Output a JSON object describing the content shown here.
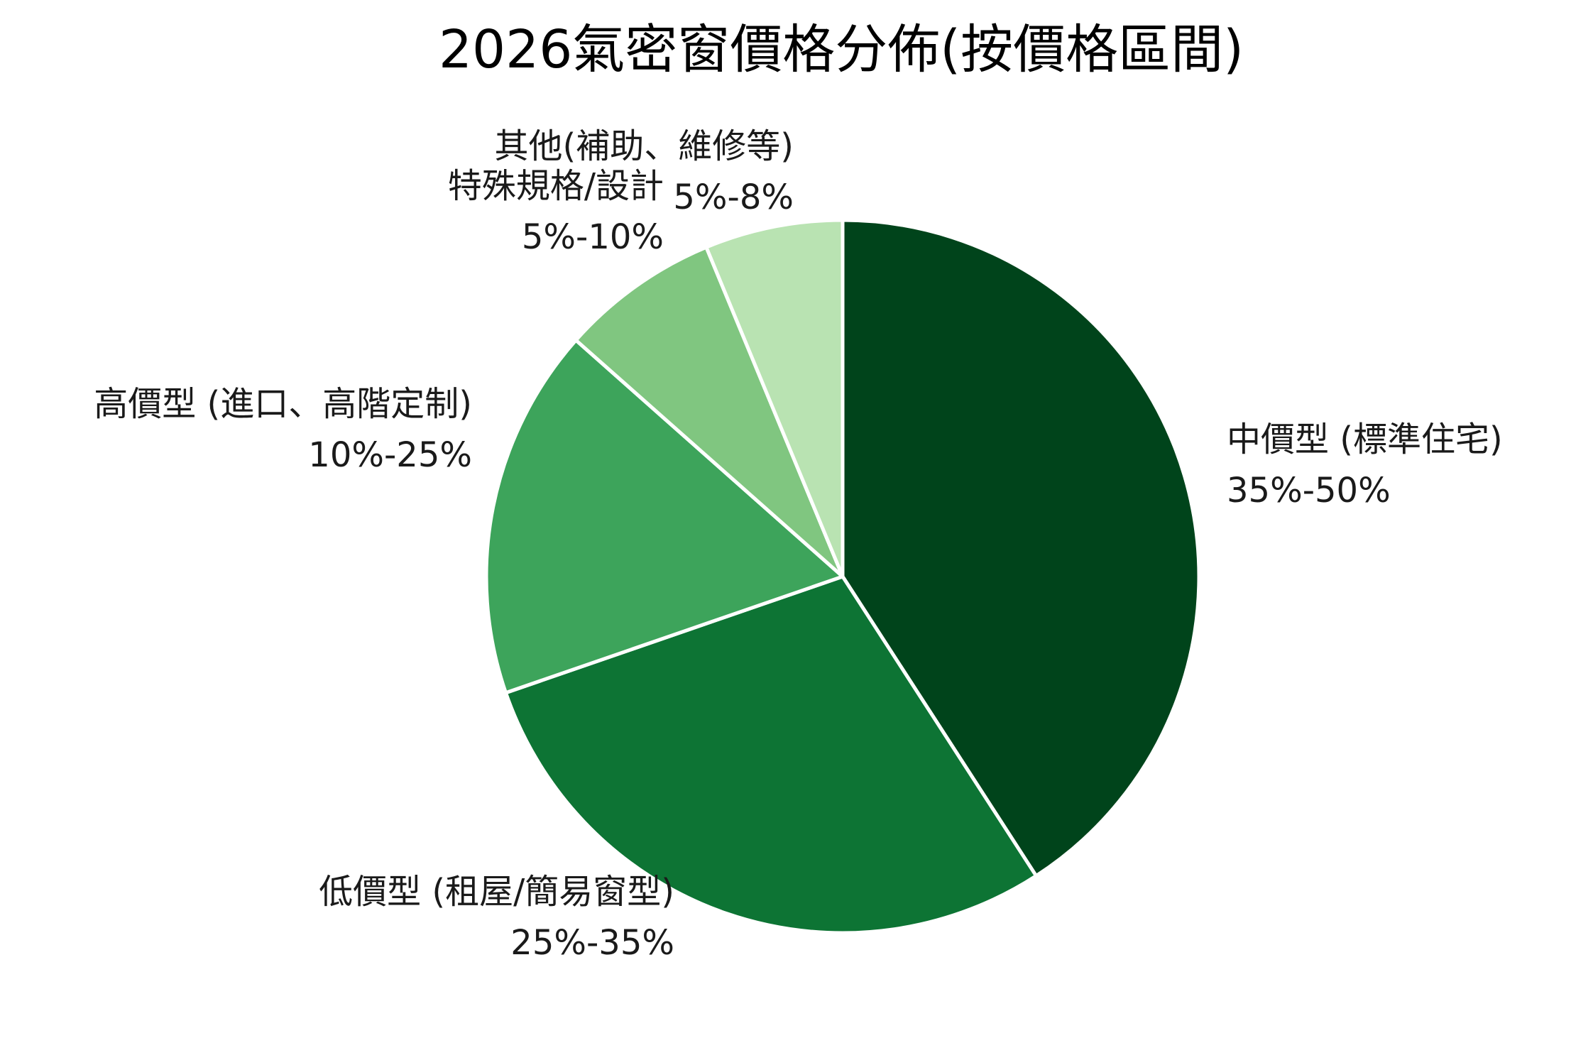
{
  "chart_data": {
    "type": "pie",
    "title": "2026氣密窗價格分佈(按價格區間)",
    "start_angle_deg": 90,
    "direction": "clockwise",
    "slices": [
      {
        "label": "中價型 (標準住宅)",
        "range": "35%-50%",
        "value": 42.5,
        "color": "#00441b"
      },
      {
        "label": "低價型 (租屋/簡易窗型)",
        "range": "25%-35%",
        "value": 30,
        "color": "#0d7434"
      },
      {
        "label": "高價型 (進口、高階定制)",
        "range": "10%-25%",
        "value": 17.5,
        "color": "#3da45b"
      },
      {
        "label": "特殊規格/設計",
        "range": "5%-10%",
        "value": 7.5,
        "color": "#80c680"
      },
      {
        "label": "其他(補助、維修等)",
        "range": "5%-8%",
        "value": 6.5,
        "color": "#b9e3b2"
      }
    ]
  }
}
